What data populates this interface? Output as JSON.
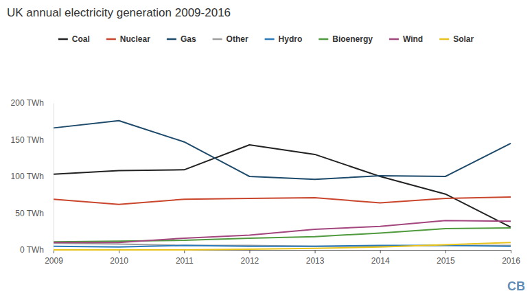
{
  "chart_data": {
    "type": "line",
    "title": "UK annual electricity generation 2009-2016",
    "x": [
      2009,
      2010,
      2011,
      2012,
      2013,
      2014,
      2015,
      2016
    ],
    "xlim": [
      2009,
      2016
    ],
    "xticks": [
      2009,
      2010,
      2011,
      2012,
      2013,
      2014,
      2015,
      2016
    ],
    "ylim": [
      0,
      200
    ],
    "yticks": [
      {
        "value": 0,
        "label": "0 TWh"
      },
      {
        "value": 50,
        "label": "50 TWh"
      },
      {
        "value": 100,
        "label": "100 TWh"
      },
      {
        "value": 150,
        "label": "150 TWh"
      },
      {
        "value": 200,
        "label": "200 TWh"
      }
    ],
    "grid": false,
    "legend": "top",
    "annotations": [
      "CB"
    ],
    "series": [
      {
        "name": "Coal",
        "color": "#222222",
        "values": [
          103,
          108,
          109,
          143,
          130,
          100,
          76,
          31
        ]
      },
      {
        "name": "Nuclear",
        "color": "#c9462c",
        "values": [
          69,
          62,
          69,
          70,
          71,
          64,
          70,
          72
        ]
      },
      {
        "name": "Gas",
        "color": "#1d4a6b",
        "values": [
          166,
          176,
          147,
          100,
          96,
          101,
          100,
          145
        ]
      },
      {
        "name": "Other",
        "color": "#9e9e9e",
        "values": [
          9,
          8,
          6,
          6,
          5,
          5,
          6,
          6
        ]
      },
      {
        "name": "Hydro",
        "color": "#2b7bba",
        "values": [
          5,
          4,
          6,
          5,
          5,
          6,
          6,
          5
        ]
      },
      {
        "name": "Bioenergy",
        "color": "#4f9a3c",
        "values": [
          11,
          12,
          13,
          16,
          18,
          23,
          29,
          30
        ]
      },
      {
        "name": "Wind",
        "color": "#a3467e",
        "values": [
          10,
          10,
          16,
          20,
          28,
          32,
          40,
          39
        ]
      },
      {
        "name": "Solar",
        "color": "#e8c31c",
        "values": [
          0,
          0,
          0,
          1,
          2,
          4,
          7,
          10
        ]
      }
    ]
  }
}
